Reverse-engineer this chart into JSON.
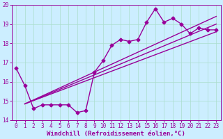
{
  "xlabel": "Windchill (Refroidissement éolien,°C)",
  "bg_color": "#cceeff",
  "plot_bg_color": "#cceeff",
  "grid_color": "#aaddcc",
  "line_color": "#990099",
  "marker": "D",
  "markersize": 2.5,
  "linewidth": 1.0,
  "ylim": [
    14,
    20
  ],
  "xlim": [
    -0.5,
    23.5
  ],
  "yticks": [
    14,
    15,
    16,
    17,
    18,
    19,
    20
  ],
  "xticks": [
    0,
    1,
    2,
    3,
    4,
    5,
    6,
    7,
    8,
    9,
    10,
    11,
    12,
    13,
    14,
    15,
    16,
    17,
    18,
    19,
    20,
    21,
    22,
    23
  ],
  "data_x": [
    0,
    1,
    2,
    3,
    4,
    5,
    6,
    7,
    8,
    9,
    10,
    11,
    12,
    13,
    14,
    15,
    16,
    17,
    18,
    19,
    20,
    21,
    22,
    23
  ],
  "data_y": [
    16.7,
    15.8,
    14.6,
    14.8,
    14.8,
    14.8,
    14.8,
    14.4,
    14.5,
    16.5,
    17.1,
    17.9,
    18.2,
    18.1,
    18.2,
    19.1,
    19.8,
    19.1,
    19.3,
    19.0,
    18.5,
    18.8,
    18.7,
    18.7
  ],
  "reg_line1_x": [
    1,
    23
  ],
  "reg_line1_y": [
    14.85,
    18.6
  ],
  "reg_line2_x": [
    1,
    23
  ],
  "reg_line2_y": [
    14.85,
    19.0
  ],
  "reg_line3_x": [
    1,
    23
  ],
  "reg_line3_y": [
    14.85,
    19.4
  ],
  "tick_fontsize": 5.5,
  "xlabel_fontsize": 6.5
}
